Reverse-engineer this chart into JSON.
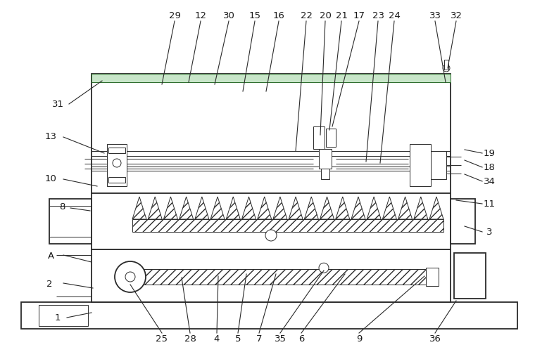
{
  "bg_color": "#ffffff",
  "line_color": "#2a2a2a",
  "fig_width": 7.6,
  "fig_height": 5.01,
  "dpi": 100,
  "lw_main": 1.3,
  "lw_thin": 0.7,
  "lw_med": 1.0,
  "label_fs": 9.5,
  "label_color": "#1a1a1a"
}
